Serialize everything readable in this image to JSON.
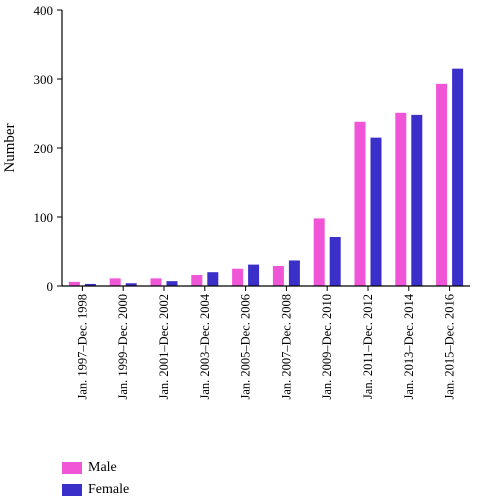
{
  "chart_data": {
    "type": "bar",
    "title": "",
    "xlabel": "",
    "ylabel": "Number",
    "ylim": [
      0,
      400
    ],
    "yticks": [
      0,
      100,
      200,
      300,
      400
    ],
    "grid": false,
    "legend_position": "bottom-left",
    "categories": [
      "Jan. 1997–Dec. 1998",
      "Jan. 1999–Dec. 2000",
      "Jan. 2001–Dec. 2002",
      "Jan. 2003–Dec. 2004",
      "Jan. 2005–Dec. 2006",
      "Jan. 2007–Dec. 2008",
      "Jan. 2009–Dec. 2010",
      "Jan. 2011–Dec. 2012",
      "Jan. 2013–Dec. 2014",
      "Jan. 2015–Dec. 2016"
    ],
    "series": [
      {
        "name": "Male",
        "color": "#f055d8",
        "values": [
          6,
          11,
          11,
          16,
          25,
          29,
          98,
          238,
          251,
          293
        ]
      },
      {
        "name": "Female",
        "color": "#3a2fc8",
        "values": [
          3,
          4,
          7,
          20,
          31,
          37,
          71,
          215,
          248,
          315
        ]
      }
    ]
  }
}
